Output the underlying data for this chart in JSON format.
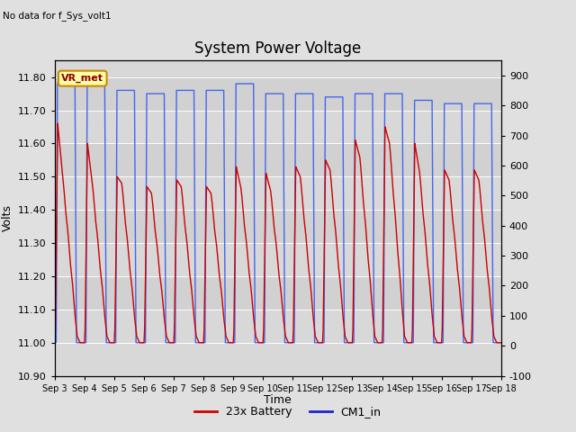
{
  "title": "System Power Voltage",
  "top_left_note": "No data for f_Sys_volt1",
  "ylabel_left": "Volts",
  "xlabel": "Time",
  "ylim_left": [
    10.9,
    11.85
  ],
  "ylim_right": [
    -100,
    950
  ],
  "yticks_left": [
    10.9,
    11.0,
    11.1,
    11.2,
    11.3,
    11.4,
    11.5,
    11.6,
    11.7,
    11.8
  ],
  "yticks_right": [
    -100,
    0,
    100,
    200,
    300,
    400,
    500,
    600,
    700,
    800,
    900
  ],
  "xtick_labels": [
    "Sep 3",
    "Sep 4",
    "Sep 5",
    "Sep 6",
    "Sep 7",
    "Sep 8",
    "Sep 9",
    "Sep 10",
    "Sep 11",
    "Sep 12",
    "Sep 13",
    "Sep 14",
    "Sep 15",
    "Sep 16",
    "Sep 17",
    "Sep 18"
  ],
  "bg_color": "#e0e0e0",
  "plot_bg_color": "#d8d8d8",
  "legend_entries": [
    "23x Battery",
    "CM1_in"
  ],
  "legend_colors": [
    "#cc0000",
    "#2222cc"
  ],
  "vr_met_label": "VR_met",
  "vr_met_bg": "#ffffaa",
  "vr_met_border": "#cc8800",
  "line_red_color": "#cc0000",
  "line_blue_color": "#4466ee",
  "n_cycles": 15,
  "battery_base": 11.0,
  "battery_peak_values": [
    11.66,
    11.6,
    11.5,
    11.47,
    11.49,
    11.47,
    11.53,
    11.51,
    11.53,
    11.55,
    11.61,
    11.65,
    11.6,
    11.52,
    11.52
  ],
  "cm1_peak_values": [
    11.78,
    11.78,
    11.76,
    11.75,
    11.76,
    11.76,
    11.78,
    11.75,
    11.75,
    11.74,
    11.75,
    11.75,
    11.73,
    11.72,
    11.72
  ],
  "battery_mid_values": [
    11.52,
    11.49,
    11.48,
    11.45,
    11.47,
    11.45,
    11.47,
    11.46,
    11.5,
    11.52,
    11.56,
    11.6,
    11.52,
    11.49,
    11.49
  ],
  "grid_color": "#bbbbbb",
  "grid_stripe_color": "#c8c8c8"
}
